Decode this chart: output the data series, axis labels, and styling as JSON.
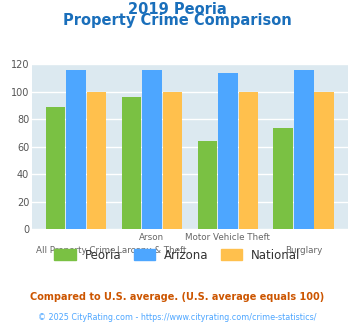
{
  "title_line1": "2019 Peoria",
  "title_line2": "Property Crime Comparison",
  "xlabel_top": [
    "",
    "Arson",
    "Motor Vehicle Theft",
    ""
  ],
  "xlabel_bottom": [
    "All Property Crime",
    "Larceny & Theft",
    "",
    "Burglary"
  ],
  "series": {
    "Peoria": [
      89,
      96,
      64,
      74
    ],
    "Arizona": [
      116,
      116,
      114,
      116
    ],
    "National": [
      100,
      100,
      100,
      100
    ]
  },
  "colors": {
    "Peoria": "#7ac143",
    "Arizona": "#4da6ff",
    "National": "#ffc04d"
  },
  "ylim": [
    0,
    120
  ],
  "yticks": [
    0,
    20,
    40,
    60,
    80,
    100,
    120
  ],
  "title_color": "#1a6fbb",
  "background_color": "#dce9f0",
  "legend_label_color": "#333333",
  "footnote1": "Compared to U.S. average. (U.S. average equals 100)",
  "footnote2": "© 2025 CityRating.com - https://www.cityrating.com/crime-statistics/",
  "footnote1_color": "#cc5500",
  "footnote2_color": "#4da6ff"
}
